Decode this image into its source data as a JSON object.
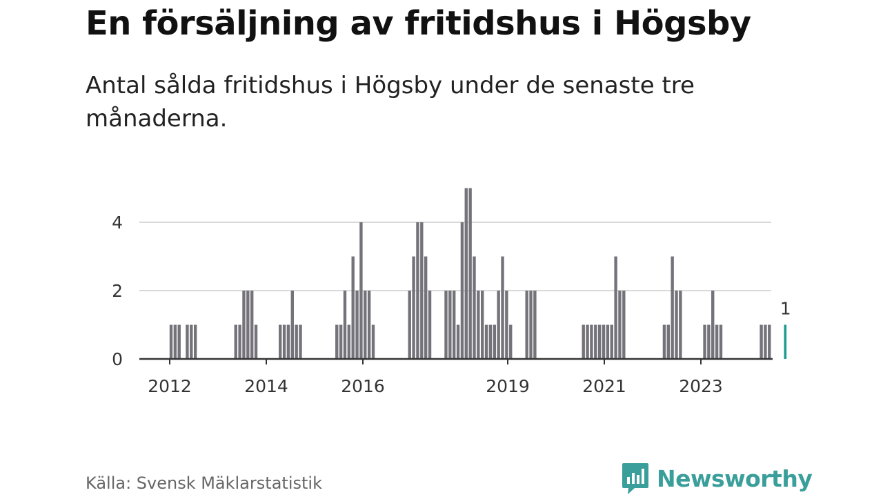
{
  "title": "En försäljning av fritidshus i Högsby",
  "subtitle": "Antal sålda fritidshus i Högsby under de senaste tre månaderna.",
  "source": "Källa: Svensk Mäklarstatistik",
  "brand": {
    "name": "Newsworthy",
    "icon": "newsworthy-logo-icon"
  },
  "colors": {
    "bar": "#75737a",
    "highlight": "#1f9a92",
    "grid": "#d9d9d9",
    "axis": "#333333"
  },
  "chart_data": {
    "type": "bar",
    "title": "En försäljning av fritidshus i Högsby",
    "subtitle": "Antal sålda fritidshus i Högsby under de senaste tre månaderna.",
    "xlabel": "",
    "ylabel": "",
    "ylim": [
      0,
      5
    ],
    "yticks": [
      0,
      2,
      4
    ],
    "xticks": [
      "2012",
      "2014",
      "2016",
      "2019",
      "2021",
      "2023"
    ],
    "grid": true,
    "legend": "none",
    "highlight_label": "1",
    "series": [
      {
        "values": [
          1,
          1,
          1,
          0,
          1,
          1,
          1,
          0,
          0,
          0,
          0,
          0,
          0,
          0,
          0,
          0,
          1,
          1,
          2,
          2,
          2,
          1,
          0,
          0,
          0,
          0,
          0,
          1,
          1,
          1,
          2,
          1,
          1,
          0,
          0,
          0,
          0,
          0,
          0,
          0,
          0,
          1,
          1,
          2,
          1,
          3,
          2,
          4,
          2,
          2,
          1,
          0,
          0,
          0,
          0,
          0,
          0,
          0,
          0,
          2,
          3,
          4,
          4,
          3,
          2,
          0,
          0,
          0,
          2,
          2,
          2,
          1,
          4,
          5,
          5,
          3,
          2,
          2,
          1,
          1,
          1,
          2,
          3,
          2,
          1,
          0,
          0,
          0,
          2,
          2,
          2,
          0,
          0,
          0,
          0,
          0,
          0,
          0,
          0,
          0,
          0,
          0,
          1,
          1,
          1,
          1,
          1,
          1,
          1,
          1,
          3,
          2,
          2,
          0,
          0,
          0,
          0,
          0,
          0,
          0,
          0,
          0,
          1,
          1,
          3,
          2,
          2,
          0,
          0,
          0,
          0,
          0,
          1,
          1,
          2,
          1,
          1,
          0,
          0,
          0,
          0,
          0,
          0,
          0,
          0,
          0,
          1,
          1,
          1,
          0,
          0,
          0,
          1
        ]
      }
    ],
    "highlight_last": true
  }
}
